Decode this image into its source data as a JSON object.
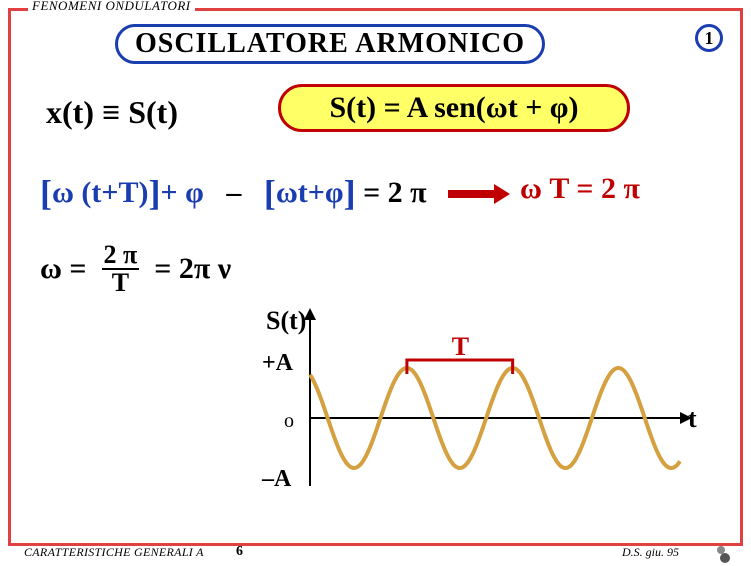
{
  "legend": "FENOMENI  ONDULATORI",
  "page_badge": "1",
  "title": "OSCILLATORE  ARMONICO",
  "eq_left": "x(t) ≡ S(t)",
  "formula": "S(t) = A sen(ωt + φ)",
  "line2_left": "[ω (t+T)]+ φ  –  [ωt+φ] = 2 π",
  "line2_right": "ω T = 2 π",
  "line3_prefix": "ω =",
  "line3_num": "2 π",
  "line3_den": "T",
  "line3_suffix": "= 2π ν",
  "chart": {
    "label_s": "S(t)",
    "label_T": "T",
    "label_pA": "+A",
    "label_o": "o",
    "label_mA": "–A",
    "label_t": "t",
    "amplitude": 50,
    "periods": 3.5,
    "phase_deg": 120,
    "wave_color": "#d4a040",
    "wave_width": 4,
    "axis_color": "#000000",
    "bracket_color": "#c00000"
  },
  "colors": {
    "border": "#e04040",
    "title_border": "#1a3db0",
    "formula_bg": "#ffff66",
    "formula_border": "#c00000",
    "blue": "#1a3db0",
    "red": "#c00000",
    "arrow": "#c00000"
  },
  "footer": {
    "left": "CARATTERISTICHE  GENERALI  A",
    "page": "6",
    "right": "D.S.   giu. 95"
  }
}
